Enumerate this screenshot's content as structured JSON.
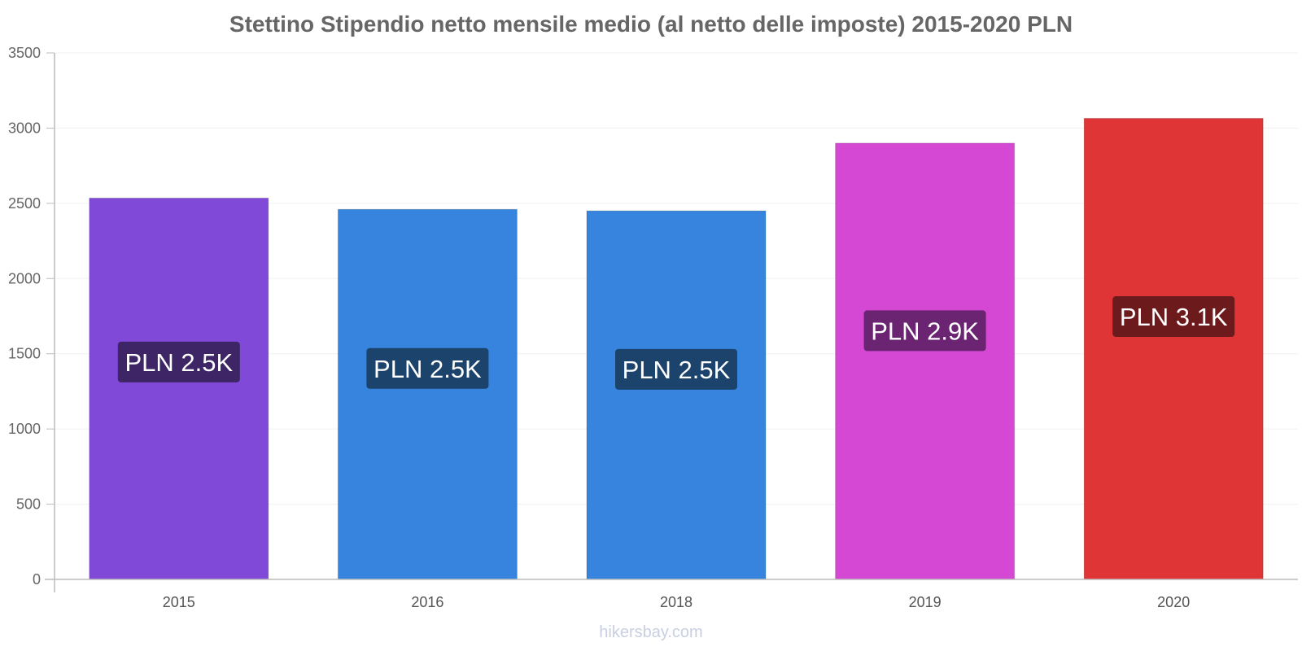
{
  "chart_data": {
    "type": "bar",
    "title": "Stettino Stipendio netto mensile medio (al netto delle imposte) 2015-2020 PLN",
    "categories": [
      "2015",
      "2016",
      "2018",
      "2019",
      "2020"
    ],
    "values": [
      2535,
      2460,
      2450,
      2900,
      3065
    ],
    "data_labels": [
      "PLN 2.5K",
      "PLN 2.5K",
      "PLN 2.5K",
      "PLN 2.9K",
      "PLN 3.1K"
    ],
    "colors": [
      "#8049d8",
      "#3684de",
      "#3684de",
      "#d548d3",
      "#e03537"
    ],
    "label_bg_colors": [
      "#3d2566",
      "#1c436b",
      "#1c436b",
      "#6a2472",
      "#6d1a1c"
    ],
    "ylim": [
      0,
      3500
    ],
    "yticks": [
      0,
      500,
      1000,
      1500,
      2000,
      2500,
      3000,
      3500
    ],
    "grid": true,
    "xlabel": "",
    "ylabel": ""
  },
  "watermark": "hikersbay.com"
}
